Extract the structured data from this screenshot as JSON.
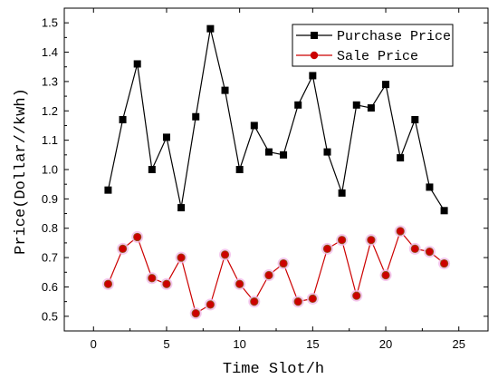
{
  "chart_data": {
    "type": "line",
    "xlabel": "Time Slot/h",
    "ylabel": "Price(Dollar//kwh)",
    "xlim": [
      -2,
      27
    ],
    "ylim": [
      0.45,
      1.55
    ],
    "xticks": [
      0,
      5,
      10,
      15,
      20,
      25
    ],
    "yticks": [
      0.5,
      0.6,
      0.7,
      0.8,
      0.9,
      1.0,
      1.1,
      1.2,
      1.3,
      1.4,
      1.5
    ],
    "legend_position": "top-right",
    "x": [
      1,
      2,
      3,
      4,
      5,
      6,
      7,
      8,
      9,
      10,
      11,
      12,
      13,
      14,
      15,
      16,
      17,
      18,
      19,
      20,
      21,
      22,
      23,
      24
    ],
    "series": [
      {
        "name": "Purchase Price",
        "color": "#000000",
        "marker": "square",
        "values": [
          0.93,
          1.17,
          1.36,
          1.0,
          1.11,
          0.87,
          1.18,
          1.48,
          1.27,
          1.0,
          1.15,
          1.06,
          1.05,
          1.22,
          1.32,
          1.06,
          0.92,
          1.22,
          1.21,
          1.29,
          1.04,
          1.17,
          0.94,
          0.86
        ]
      },
      {
        "name": "Sale Price",
        "color": "#cc0000",
        "marker": "circle",
        "values": [
          0.61,
          0.73,
          0.77,
          0.63,
          0.61,
          0.7,
          0.51,
          0.54,
          0.71,
          0.61,
          0.55,
          0.64,
          0.68,
          0.55,
          0.56,
          0.73,
          0.76,
          0.57,
          0.76,
          0.64,
          0.79,
          0.73,
          0.72,
          0.68
        ]
      }
    ]
  }
}
